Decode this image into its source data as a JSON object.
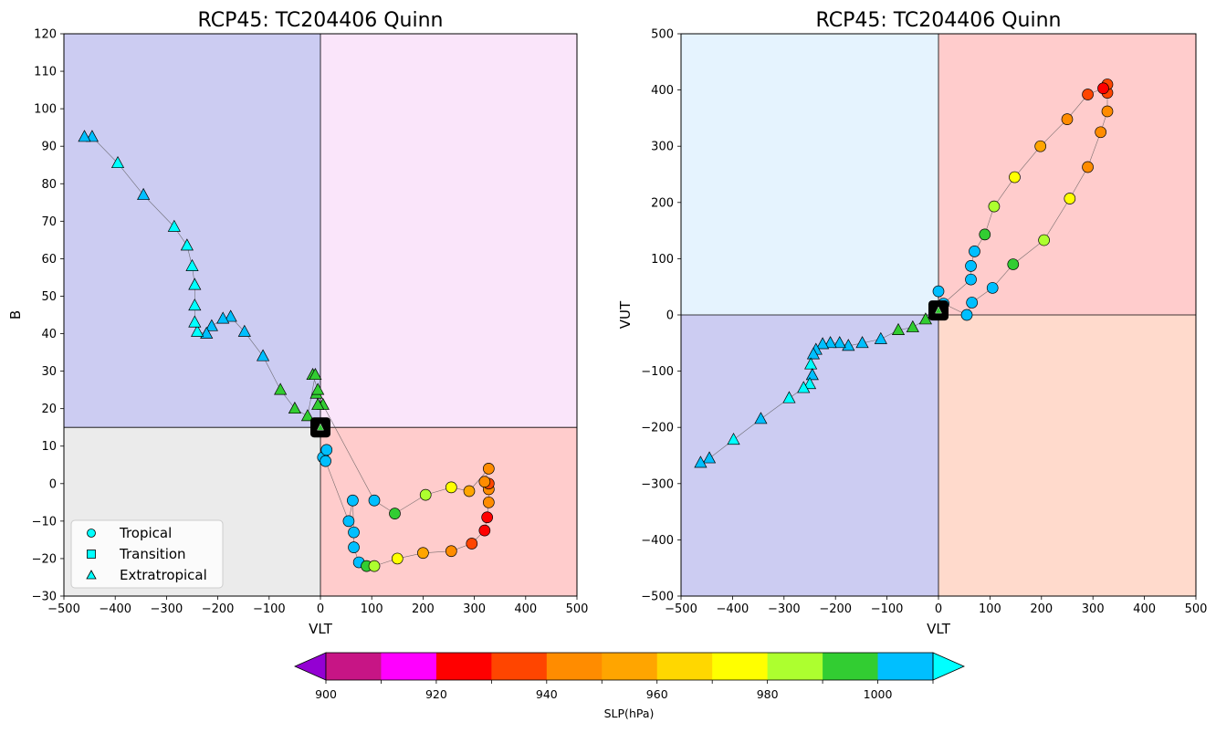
{
  "chart_data": [
    {
      "type": "scatter",
      "title": "RCP45: TC204406 Quinn",
      "xlabel": "VLT",
      "ylabel": "B",
      "xlim": [
        -500,
        500
      ],
      "ylim": [
        -30,
        120
      ],
      "xticks": [
        -500,
        -400,
        -300,
        -200,
        -100,
        0,
        100,
        200,
        300,
        400,
        500
      ],
      "yticks": [
        -30,
        -20,
        -10,
        0,
        10,
        20,
        30,
        40,
        50,
        60,
        70,
        80,
        90,
        100,
        110,
        120
      ],
      "threshold": {
        "x": 0,
        "y": 15
      },
      "quadrant_colors": {
        "upper_left": "#ccccf2",
        "upper_right": "#fae5fa",
        "lower_left": "#ebebeb",
        "lower_right": "#ffcccc"
      },
      "start_marker": {
        "x": 0,
        "y": 15
      },
      "legend": {
        "position": "lower-left",
        "entries": [
          "Tropical",
          "Transition",
          "Extratropical"
        ]
      },
      "points": [
        {
          "x": 5,
          "y": 7,
          "slp": 1005,
          "type": "tropical"
        },
        {
          "x": 12,
          "y": 9,
          "slp": 1005,
          "type": "tropical"
        },
        {
          "x": 10,
          "y": 6,
          "slp": 1005,
          "type": "tropical"
        },
        {
          "x": 55,
          "y": -10,
          "slp": 1005,
          "type": "tropical"
        },
        {
          "x": 63,
          "y": -4.5,
          "slp": 1005,
          "type": "tropical"
        },
        {
          "x": 65,
          "y": -13,
          "slp": 1005,
          "type": "tropical"
        },
        {
          "x": 65,
          "y": -17,
          "slp": 1005,
          "type": "tropical"
        },
        {
          "x": 75,
          "y": -21,
          "slp": 1005,
          "type": "tropical"
        },
        {
          "x": 90,
          "y": -22,
          "slp": 995,
          "type": "tropical"
        },
        {
          "x": 105,
          "y": -22,
          "slp": 985,
          "type": "tropical"
        },
        {
          "x": 150,
          "y": -20,
          "slp": 975,
          "type": "tropical"
        },
        {
          "x": 200,
          "y": -18.5,
          "slp": 955,
          "type": "tropical"
        },
        {
          "x": 255,
          "y": -18,
          "slp": 945,
          "type": "tropical"
        },
        {
          "x": 295,
          "y": -16,
          "slp": 935,
          "type": "tropical"
        },
        {
          "x": 320,
          "y": -12.5,
          "slp": 925,
          "type": "tropical"
        },
        {
          "x": 325,
          "y": -9,
          "slp": 925,
          "type": "tropical"
        },
        {
          "x": 328,
          "y": -5,
          "slp": 945,
          "type": "tropical"
        },
        {
          "x": 328,
          "y": -1.5,
          "slp": 945,
          "type": "tropical"
        },
        {
          "x": 328,
          "y": 0,
          "slp": 935,
          "type": "tropical"
        },
        {
          "x": 320,
          "y": 0.5,
          "slp": 945,
          "type": "tropical"
        },
        {
          "x": 328,
          "y": 4,
          "slp": 945,
          "type": "tropical"
        },
        {
          "x": 290,
          "y": -2,
          "slp": 955,
          "type": "tropical"
        },
        {
          "x": 255,
          "y": -1,
          "slp": 975,
          "type": "tropical"
        },
        {
          "x": 205,
          "y": -3,
          "slp": 985,
          "type": "tropical"
        },
        {
          "x": 145,
          "y": -8,
          "slp": 995,
          "type": "tropical"
        },
        {
          "x": 105,
          "y": -4.5,
          "slp": 1005,
          "type": "tropical"
        },
        {
          "x": 5,
          "y": 21,
          "slp": 995,
          "type": "extratropical"
        },
        {
          "x": -5,
          "y": 21,
          "slp": 995,
          "type": "extratropical"
        },
        {
          "x": -8,
          "y": 24,
          "slp": 995,
          "type": "extratropical"
        },
        {
          "x": -5,
          "y": 25,
          "slp": 995,
          "type": "extratropical"
        },
        {
          "x": -15,
          "y": 29,
          "slp": 995,
          "type": "extratropical"
        },
        {
          "x": -10,
          "y": 29,
          "slp": 995,
          "type": "extratropical"
        },
        {
          "x": -25,
          "y": 18,
          "slp": 995,
          "type": "extratropical"
        },
        {
          "x": -50,
          "y": 20,
          "slp": 995,
          "type": "extratropical"
        },
        {
          "x": -78,
          "y": 25,
          "slp": 995,
          "type": "extratropical"
        },
        {
          "x": -112,
          "y": 34,
          "slp": 1005,
          "type": "extratropical"
        },
        {
          "x": -148,
          "y": 40.5,
          "slp": 1005,
          "type": "extratropical"
        },
        {
          "x": -175,
          "y": 44.5,
          "slp": 1005,
          "type": "extratropical"
        },
        {
          "x": -190,
          "y": 44,
          "slp": 1005,
          "type": "extratropical"
        },
        {
          "x": -212,
          "y": 42,
          "slp": 1005,
          "type": "extratropical"
        },
        {
          "x": -222,
          "y": 40,
          "slp": 1005,
          "type": "extratropical"
        },
        {
          "x": -240,
          "y": 40.5,
          "slp": 1015,
          "type": "extratropical"
        },
        {
          "x": -245,
          "y": 43,
          "slp": 1015,
          "type": "extratropical"
        },
        {
          "x": -245,
          "y": 47.5,
          "slp": 1015,
          "type": "extratropical"
        },
        {
          "x": -245,
          "y": 53,
          "slp": 1015,
          "type": "extratropical"
        },
        {
          "x": -250,
          "y": 58,
          "slp": 1015,
          "type": "extratropical"
        },
        {
          "x": -260,
          "y": 63.5,
          "slp": 1015,
          "type": "extratropical"
        },
        {
          "x": -285,
          "y": 68.5,
          "slp": 1015,
          "type": "extratropical"
        },
        {
          "x": -345,
          "y": 77,
          "slp": 1005,
          "type": "extratropical"
        },
        {
          "x": -395,
          "y": 85.5,
          "slp": 1015,
          "type": "extratropical"
        },
        {
          "x": -445,
          "y": 92.5,
          "slp": 1005,
          "type": "extratropical"
        },
        {
          "x": -460,
          "y": 92.5,
          "slp": 1005,
          "type": "extratropical"
        }
      ]
    },
    {
      "type": "scatter",
      "title": "RCP45: TC204406 Quinn",
      "xlabel": "VLT",
      "ylabel": "VUT",
      "xlim": [
        -500,
        500
      ],
      "ylim": [
        -500,
        500
      ],
      "xticks": [
        -500,
        -400,
        -300,
        -200,
        -100,
        0,
        100,
        200,
        300,
        400,
        500
      ],
      "yticks": [
        -500,
        -400,
        -300,
        -200,
        -100,
        0,
        100,
        200,
        300,
        400,
        500
      ],
      "threshold": {
        "x": 0,
        "y": 0
      },
      "quadrant_colors": {
        "upper_left": "#e5f3fe",
        "upper_right": "#ffcccc",
        "lower_left": "#ccccf2",
        "lower_right": "#ffdacc"
      },
      "start_marker": {
        "x": 0,
        "y": 8
      },
      "points": [
        {
          "x": 0,
          "y": 42,
          "slp": 1005,
          "type": "tropical"
        },
        {
          "x": 10,
          "y": 20,
          "slp": 1005,
          "type": "tropical"
        },
        {
          "x": 55,
          "y": 0,
          "slp": 1005,
          "type": "tropical"
        },
        {
          "x": 65,
          "y": 22,
          "slp": 1005,
          "type": "tropical"
        },
        {
          "x": 105,
          "y": 48,
          "slp": 1005,
          "type": "tropical"
        },
        {
          "x": 145,
          "y": 90,
          "slp": 995,
          "type": "tropical"
        },
        {
          "x": 205,
          "y": 133,
          "slp": 985,
          "type": "tropical"
        },
        {
          "x": 255,
          "y": 207,
          "slp": 975,
          "type": "tropical"
        },
        {
          "x": 290,
          "y": 263,
          "slp": 945,
          "type": "tropical"
        },
        {
          "x": 315,
          "y": 325,
          "slp": 945,
          "type": "tropical"
        },
        {
          "x": 328,
          "y": 362,
          "slp": 945,
          "type": "tropical"
        },
        {
          "x": 328,
          "y": 395,
          "slp": 935,
          "type": "tropical"
        },
        {
          "x": 328,
          "y": 410,
          "slp": 935,
          "type": "tropical"
        },
        {
          "x": 320,
          "y": 403,
          "slp": 925,
          "type": "tropical"
        },
        {
          "x": 290,
          "y": 392,
          "slp": 935,
          "type": "tropical"
        },
        {
          "x": 250,
          "y": 348,
          "slp": 945,
          "type": "tropical"
        },
        {
          "x": 198,
          "y": 300,
          "slp": 955,
          "type": "tropical"
        },
        {
          "x": 148,
          "y": 245,
          "slp": 975,
          "type": "tropical"
        },
        {
          "x": 108,
          "y": 193,
          "slp": 985,
          "type": "tropical"
        },
        {
          "x": 90,
          "y": 143,
          "slp": 995,
          "type": "tropical"
        },
        {
          "x": 70,
          "y": 113,
          "slp": 1005,
          "type": "tropical"
        },
        {
          "x": 63,
          "y": 87,
          "slp": 1005,
          "type": "tropical"
        },
        {
          "x": 63,
          "y": 63,
          "slp": 1005,
          "type": "tropical"
        },
        {
          "x": -25,
          "y": -8,
          "slp": 995,
          "type": "extratropical"
        },
        {
          "x": -50,
          "y": -22,
          "slp": 995,
          "type": "extratropical"
        },
        {
          "x": -78,
          "y": -27,
          "slp": 995,
          "type": "extratropical"
        },
        {
          "x": -112,
          "y": -43,
          "slp": 1005,
          "type": "extratropical"
        },
        {
          "x": -148,
          "y": -50,
          "slp": 1005,
          "type": "extratropical"
        },
        {
          "x": -175,
          "y": -55,
          "slp": 1005,
          "type": "extratropical"
        },
        {
          "x": -192,
          "y": -50,
          "slp": 1005,
          "type": "extratropical"
        },
        {
          "x": -210,
          "y": -50,
          "slp": 1005,
          "type": "extratropical"
        },
        {
          "x": -225,
          "y": -52,
          "slp": 1005,
          "type": "extratropical"
        },
        {
          "x": -238,
          "y": -62,
          "slp": 1005,
          "type": "extratropical"
        },
        {
          "x": -243,
          "y": -70,
          "slp": 1005,
          "type": "extratropical"
        },
        {
          "x": -248,
          "y": -88,
          "slp": 1015,
          "type": "extratropical"
        },
        {
          "x": -245,
          "y": -107,
          "slp": 1005,
          "type": "extratropical"
        },
        {
          "x": -250,
          "y": -123,
          "slp": 1015,
          "type": "extratropical"
        },
        {
          "x": -262,
          "y": -130,
          "slp": 1015,
          "type": "extratropical"
        },
        {
          "x": -290,
          "y": -148,
          "slp": 1015,
          "type": "extratropical"
        },
        {
          "x": -345,
          "y": -185,
          "slp": 1005,
          "type": "extratropical"
        },
        {
          "x": -398,
          "y": -222,
          "slp": 1015,
          "type": "extratropical"
        },
        {
          "x": -445,
          "y": -255,
          "slp": 1005,
          "type": "extratropical"
        },
        {
          "x": -462,
          "y": -263,
          "slp": 1005,
          "type": "extratropical"
        }
      ]
    }
  ],
  "colorbar": {
    "label": "SLP(hPa)",
    "boundaries": [
      900,
      910,
      920,
      930,
      940,
      950,
      960,
      970,
      980,
      990,
      1000,
      1010
    ],
    "tick_labels": [
      "900",
      "920",
      "940",
      "960",
      "980",
      "1000"
    ],
    "colors": [
      "#c71585",
      "#ff00ff",
      "#ff0000",
      "#ff4500",
      "#ff8c00",
      "#ffa500",
      "#ffd700",
      "#ffff00",
      "#adff2f",
      "#32cd32",
      "#00bfff"
    ],
    "under_color": "#9400d3",
    "over_color": "#00ffff"
  }
}
